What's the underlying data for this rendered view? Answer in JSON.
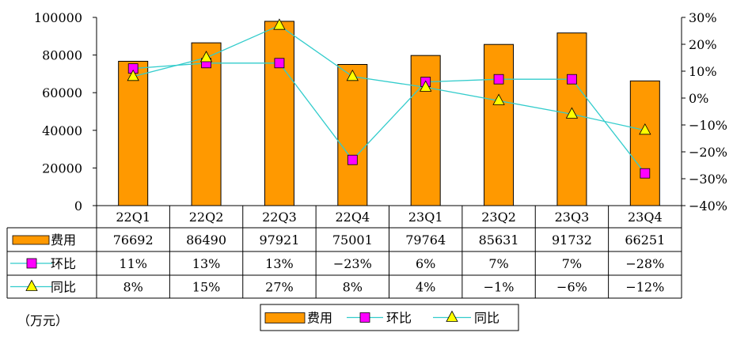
{
  "chart_data": {
    "type": "bar",
    "categories": [
      "22Q1",
      "22Q2",
      "22Q3",
      "22Q4",
      "23Q1",
      "23Q2",
      "23Q3",
      "23Q4"
    ],
    "series": [
      {
        "name": "费用",
        "kind": "bar",
        "axis": "left",
        "values": [
          76692,
          86490,
          97921,
          75001,
          79764,
          85631,
          91732,
          66251
        ],
        "labels": [
          "76692",
          "86490",
          "97921",
          "75001",
          "79764",
          "85631",
          "91732",
          "66251"
        ]
      },
      {
        "name": "环比",
        "kind": "line",
        "axis": "right",
        "marker": "square",
        "values": [
          11,
          13,
          13,
          -23,
          6,
          7,
          7,
          -28
        ],
        "labels": [
          "11%",
          "13%",
          "13%",
          "−23%",
          "6%",
          "7%",
          "7%",
          "−28%"
        ]
      },
      {
        "name": "同比",
        "kind": "line",
        "axis": "right",
        "marker": "triangle",
        "values": [
          8,
          15,
          27,
          8,
          4,
          -1,
          -6,
          -12
        ],
        "labels": [
          "8%",
          "15%",
          "27%",
          "8%",
          "4%",
          "−1%",
          "−6%",
          "−12%"
        ]
      }
    ],
    "y_left": {
      "range": [
        0,
        100000
      ],
      "ticks": [
        "0",
        "20000",
        "40000",
        "60000",
        "80000",
        "100000"
      ]
    },
    "y_right": {
      "range": [
        -40,
        30
      ],
      "ticks": [
        "30%",
        "20%",
        "10%",
        "0%",
        "−10%",
        "−20%",
        "−30%",
        "−40%"
      ]
    },
    "unit_label": "（万元）",
    "legend": {
      "position": "bottom",
      "items": [
        "费用",
        "环比",
        "同比"
      ]
    },
    "grid": false,
    "data_table": true,
    "colors": {
      "bar": "#FF9900",
      "bar_edge": "#000000",
      "line": "#33CCCC",
      "square": "#FF00FF",
      "triangle": "#FFFF00"
    }
  }
}
